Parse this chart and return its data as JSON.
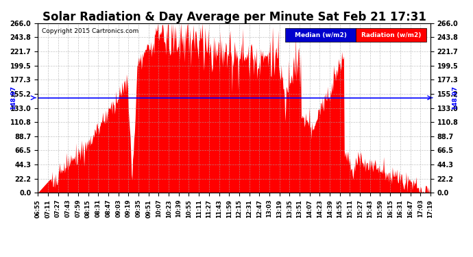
{
  "title": "Solar Radiation & Day Average per Minute Sat Feb 21 17:31",
  "copyright": "Copyright 2015 Cartronics.com",
  "median_value": 148.97,
  "ymax": 266.0,
  "ymin": 0.0,
  "yticks": [
    0.0,
    22.2,
    44.3,
    66.5,
    88.7,
    110.8,
    133.0,
    155.2,
    177.3,
    199.5,
    221.7,
    243.8,
    266.0
  ],
  "fill_color": "#FF0000",
  "median_color": "#0000FF",
  "background_color": "#FFFFFF",
  "plot_bg_color": "#FFFFFF",
  "grid_color": "#AAAAAA",
  "title_fontsize": 12,
  "legend_labels": [
    "Median (w/m2)",
    "Radiation (w/m2)"
  ],
  "legend_bg_colors": [
    "#0000CD",
    "#FF0000"
  ],
  "xtick_labels": [
    "06:55",
    "07:11",
    "07:27",
    "07:43",
    "07:59",
    "08:15",
    "08:31",
    "08:47",
    "09:03",
    "09:19",
    "09:35",
    "09:51",
    "10:07",
    "10:23",
    "10:39",
    "10:55",
    "11:11",
    "11:27",
    "11:43",
    "11:59",
    "12:15",
    "12:31",
    "12:47",
    "13:03",
    "13:19",
    "13:35",
    "13:51",
    "14:07",
    "14:23",
    "14:39",
    "14:55",
    "15:11",
    "15:27",
    "15:43",
    "15:59",
    "16:15",
    "16:31",
    "16:47",
    "17:03",
    "17:19"
  ],
  "median_label": "148.97"
}
